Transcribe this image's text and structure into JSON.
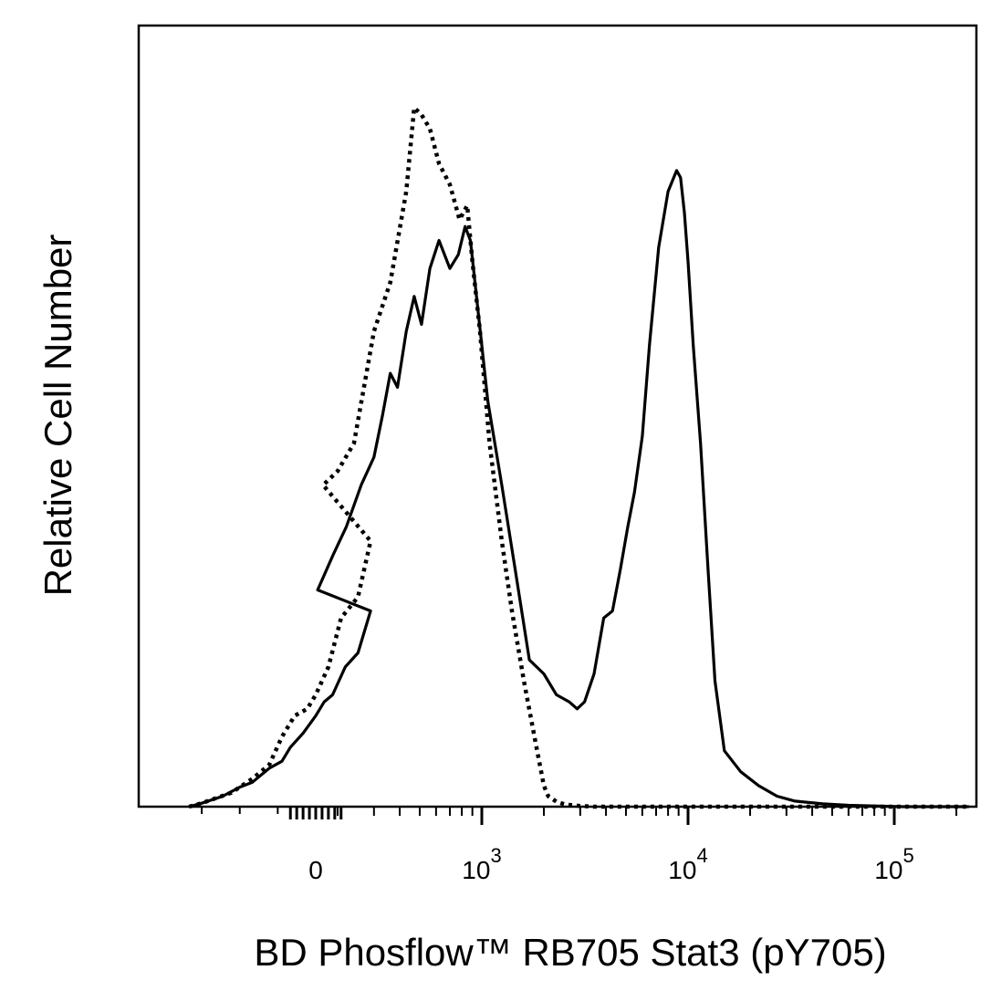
{
  "chart_data": {
    "type": "line",
    "title": "",
    "xlabel": "BD Phosflow™ RB705 Stat3 (pY705)",
    "ylabel": "Relative Cell Number",
    "x_scale": "biexponential",
    "xlim": [
      -300,
      230000
    ],
    "ylim": [
      0,
      100
    ],
    "x_ticks": [
      {
        "value": 0,
        "label": "0",
        "exp": ""
      },
      {
        "value": 1000,
        "label": "10",
        "exp": "3"
      },
      {
        "value": 10000,
        "label": "10",
        "exp": "4"
      },
      {
        "value": 100000,
        "label": "10",
        "exp": "5"
      }
    ],
    "legend": "none",
    "grid": false,
    "colors": {
      "line": "#000000",
      "background": "#ffffff"
    },
    "series": [
      {
        "style": "dotted",
        "x": [
          -300,
          -270,
          -200,
          -150,
          -110,
          -80,
          -50,
          -20,
          0,
          30,
          60,
          100,
          130,
          170,
          200,
          240,
          300,
          360,
          430,
          470,
          510,
          560,
          620,
          700,
          780,
          850,
          900,
          980,
          1090,
          1250,
          1400,
          1600,
          1800,
          2000,
          2100,
          2300,
          2550,
          3000,
          3500,
          230000
        ],
        "y": [
          0,
          0.5,
          2,
          4,
          6,
          10,
          13,
          14,
          16,
          20,
          27,
          30,
          38,
          46,
          48,
          52,
          68,
          75,
          88,
          100,
          99,
          97,
          92,
          89,
          84,
          86,
          78,
          68,
          52,
          38,
          28,
          18,
          10,
          3,
          1.5,
          0.7,
          0.3,
          0.1,
          0,
          0
        ]
      },
      {
        "style": "solid",
        "x": [
          -300,
          -270,
          -220,
          -180,
          -150,
          -110,
          -80,
          -60,
          -30,
          0,
          20,
          40,
          70,
          100,
          130,
          160,
          190,
          220,
          260,
          300,
          330,
          360,
          390,
          430,
          470,
          510,
          560,
          620,
          700,
          770,
          830,
          880,
          950,
          1070,
          1250,
          1450,
          1700,
          2000,
          2300,
          2650,
          2900,
          3150,
          3500,
          3900,
          4300,
          4700,
          5100,
          5500,
          6000,
          6500,
          7200,
          8000,
          8800,
          9200,
          9600,
          10000,
          10600,
          11500,
          12500,
          13500,
          15000,
          18000,
          22000,
          27000,
          33000,
          45000,
          60000,
          80000,
          110000,
          150000,
          230000
        ],
        "y": [
          0,
          0.5,
          1.5,
          2.8,
          3.5,
          5.5,
          6.5,
          8.5,
          10.5,
          13,
          15,
          16,
          20,
          22,
          28,
          31,
          36,
          40,
          46,
          50,
          56,
          62,
          60,
          68,
          73,
          69,
          77,
          81,
          77,
          79,
          83,
          81,
          72,
          58,
          46,
          34,
          21,
          19,
          16,
          15,
          14,
          15,
          19,
          27,
          28,
          34,
          40,
          45,
          53,
          66,
          80,
          88,
          91,
          90,
          85,
          78,
          66,
          52,
          34,
          18,
          8,
          5,
          3,
          1.5,
          0.8,
          0.4,
          0.2,
          0.1,
          0,
          0,
          0
        ]
      }
    ]
  }
}
